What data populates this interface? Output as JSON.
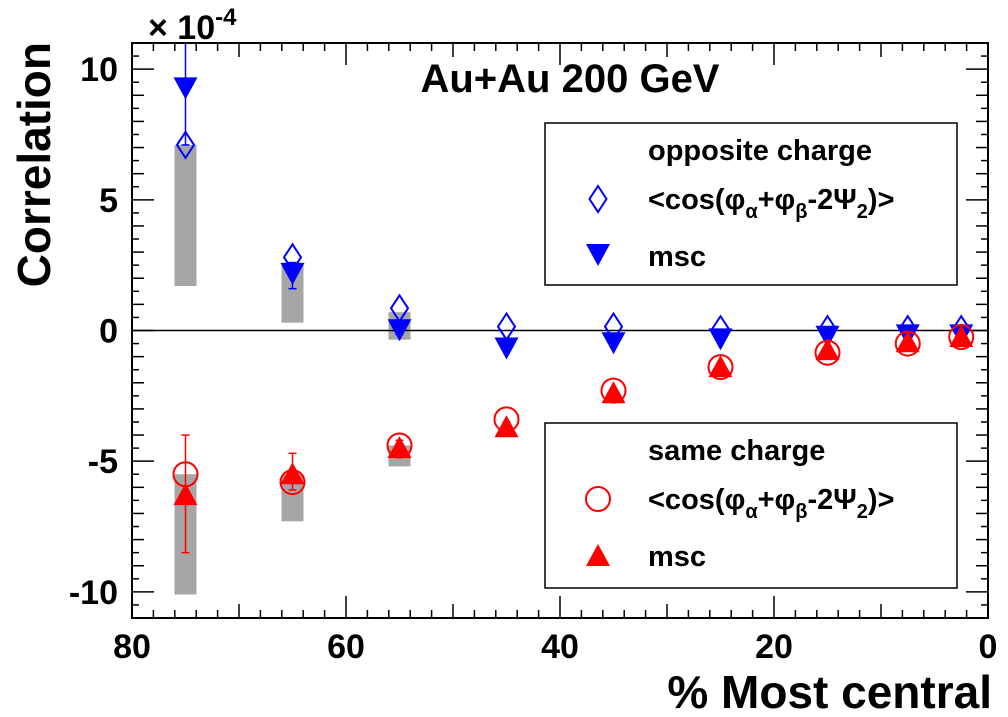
{
  "chart_data": {
    "type": "scatter",
    "title": "Au+Au 200 GeV",
    "xlabel": "% Most central",
    "ylabel": "Correlation",
    "scale_label": "× 10",
    "scale_exponent": "-4",
    "xlim": [
      80,
      0
    ],
    "ylim": [
      -11,
      11
    ],
    "x_ticks": [
      80,
      60,
      40,
      20,
      0
    ],
    "x_tick_labels": [
      "80",
      "60",
      "40",
      "20",
      "0"
    ],
    "y_ticks": [
      10,
      5,
      0,
      -5,
      -10
    ],
    "y_tick_labels": [
      "10",
      "5",
      "0",
      "-5",
      "-10"
    ],
    "x": [
      75,
      65,
      55,
      45,
      35,
      25,
      15,
      7.5,
      2.5
    ],
    "series": [
      {
        "name": "opposite charge <cos(φα+φβ-2Ψ2)>",
        "group": "opposite",
        "marker": "diamond-open",
        "color": "#0000ff",
        "values": [
          7.1,
          2.8,
          0.85,
          0.15,
          0.15,
          0.05,
          0.05,
          0.05,
          0.05
        ]
      },
      {
        "name": "opposite charge msc",
        "group": "opposite",
        "marker": "triangle-down",
        "color": "#0000ff",
        "values": [
          9.3,
          2.2,
          0.05,
          -0.65,
          -0.45,
          -0.3,
          -0.2,
          -0.15,
          -0.15
        ],
        "err_up": [
          1.7,
          0.4,
          0.2,
          0.15,
          0.1,
          0.1,
          0.05,
          0.05,
          0.05
        ],
        "err_down": [
          2.2,
          0.6,
          0.2,
          0.15,
          0.1,
          0.1,
          0.05,
          0.05,
          0.05
        ]
      },
      {
        "name": "same charge <cos(φα+φβ-2Ψ2)>",
        "group": "same",
        "marker": "circle-open",
        "color": "#ff0000",
        "values": [
          -5.5,
          -5.8,
          -4.4,
          -3.4,
          -2.3,
          -1.4,
          -0.85,
          -0.5,
          -0.25
        ]
      },
      {
        "name": "same charge msc",
        "group": "same",
        "marker": "triangle-up",
        "color": "#ff0000",
        "values": [
          -6.3,
          -5.5,
          -4.5,
          -3.7,
          -2.4,
          -1.4,
          -0.75,
          -0.45,
          -0.25
        ],
        "err_up": [
          2.3,
          0.8,
          0.3,
          0.2,
          0.1,
          0.1,
          0.05,
          0.05,
          0.05
        ],
        "err_down": [
          2.2,
          0.6,
          0.3,
          0.2,
          0.1,
          0.1,
          0.05,
          0.05,
          0.05
        ]
      }
    ],
    "systematics": [
      {
        "group": "opposite",
        "x": 75,
        "low": 1.7,
        "high": 7.1
      },
      {
        "group": "opposite",
        "x": 65,
        "low": 0.3,
        "high": 2.6
      },
      {
        "group": "opposite",
        "x": 55,
        "low": -0.35,
        "high": 0.7
      },
      {
        "group": "same",
        "x": 75,
        "low": -10.1,
        "high": -5.5
      },
      {
        "group": "same",
        "x": 65,
        "low": -7.3,
        "high": -5.5
      },
      {
        "group": "same",
        "x": 55,
        "low": -5.2,
        "high": -4.4
      }
    ],
    "legends": [
      {
        "position": "upper-right",
        "header": "opposite charge",
        "entries": [
          {
            "marker": "diamond-open",
            "color": "#0000ff",
            "label": "<cos(φ",
            "sub1": "α",
            "mid1": "+φ",
            "sub2": "β",
            "mid2": "-2Ψ",
            "sub3": "2",
            "tail": ")>"
          },
          {
            "marker": "triangle-down",
            "color": "#0000ff",
            "label": "msc"
          }
        ]
      },
      {
        "position": "lower-right",
        "header": "same charge",
        "entries": [
          {
            "marker": "circle-open",
            "color": "#ff0000",
            "label": "<cos(φ",
            "sub1": "α",
            "mid1": "+φ",
            "sub2": "β",
            "mid2": "-2Ψ",
            "sub3": "2",
            "tail": ")>"
          },
          {
            "marker": "triangle-up",
            "color": "#ff0000",
            "label": "msc"
          }
        ]
      }
    ],
    "grid": false,
    "zero_line": true
  }
}
